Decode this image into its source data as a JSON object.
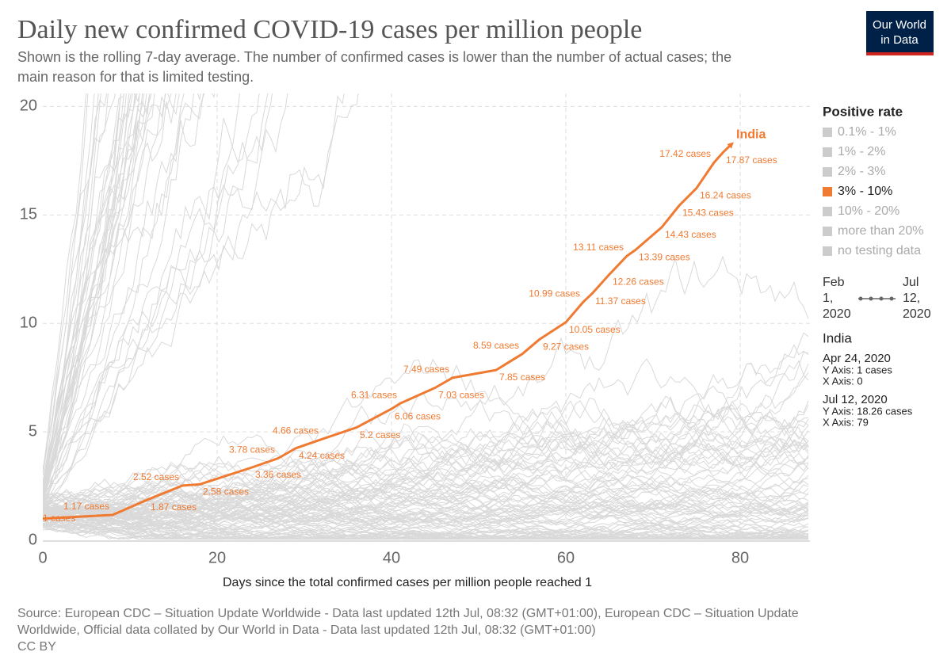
{
  "chart_data": {
    "type": "line",
    "title": "Daily new confirmed COVID-19 cases per million people",
    "subtitle": [
      "Shown is the rolling 7-day average. The number of confirmed cases is lower than the number of actual cases; the",
      "main reason for that is limited testing."
    ],
    "xlabel": "Days since the total confirmed cases per million people reached 1",
    "xlim": [
      0,
      88
    ],
    "ylim": [
      0,
      20.6
    ],
    "xticks": [
      0,
      20,
      40,
      60,
      80
    ],
    "yticks": [
      0,
      5,
      10,
      15,
      20
    ],
    "grid": true,
    "series": [
      {
        "name": "India",
        "color": "#ef7a31",
        "x": [
          0,
          8,
          12,
          16,
          18,
          24,
          27,
          29,
          32,
          36,
          40,
          41,
          45,
          47,
          52,
          55,
          57,
          60,
          62,
          63,
          65,
          67,
          68,
          71,
          73,
          75,
          77,
          78,
          79
        ],
        "values": [
          1,
          1.17,
          1.87,
          2.52,
          2.58,
          3.36,
          3.78,
          4.24,
          4.66,
          5.2,
          6.06,
          6.31,
          7.03,
          7.49,
          7.85,
          8.59,
          9.27,
          10.05,
          10.99,
          11.37,
          12.26,
          13.11,
          13.39,
          14.43,
          15.43,
          16.24,
          17.42,
          17.87,
          18.26
        ],
        "value_labels": [
          "1 cases",
          "1.17 cases",
          "1.87 cases",
          "2.52 cases",
          "2.58 cases",
          "3.36 cases",
          "3.78 cases",
          "4.24 cases",
          "4.66 cases",
          "5.2 cases",
          "6.06 cases",
          "6.31 cases",
          "7.03 cases",
          "7.49 cases",
          "7.85 cases",
          "8.59 cases",
          "9.27 cases",
          "10.05 cases",
          "10.99 cases",
          "11.37 cases",
          "12.26 cases",
          "13.11 cases",
          "13.39 cases",
          "14.43 cases",
          "15.43 cases",
          "16.24 cases",
          "17.42 cases",
          "17.87 cases",
          null
        ]
      }
    ],
    "legend": {
      "title": "Positive rate",
      "items": [
        {
          "label": "0.1% - 1%",
          "color": "#cccccc",
          "active": false
        },
        {
          "label": "1% - 2%",
          "color": "#cccccc",
          "active": false
        },
        {
          "label": "2% - 3%",
          "color": "#cccccc",
          "active": false
        },
        {
          "label": "3% - 10%",
          "color": "#ef7a31",
          "active": true
        },
        {
          "label": "10% - 20%",
          "color": "#cccccc",
          "active": false
        },
        {
          "label": "more than 20%",
          "color": "#cccccc",
          "active": false
        },
        {
          "label": "no testing data",
          "color": "#cccccc",
          "active": false
        }
      ]
    },
    "timeline": {
      "start": [
        "Feb",
        "1,",
        "2020"
      ],
      "end": [
        "Jul",
        "12,",
        "2020"
      ]
    },
    "tooltip": {
      "country": "India",
      "entries": [
        {
          "date": "Apr 24, 2020",
          "y": "Y Axis: 1 cases",
          "x": "X Axis: 0"
        },
        {
          "date": "Jul 12, 2020",
          "y": "Y Axis: 18.26 cases",
          "x": "X Axis: 79"
        }
      ]
    },
    "logo": [
      "Our World",
      "in Data"
    ],
    "source": [
      "Source: European CDC – Situation Update Worldwide - Data last updated 12th Jul, 08:32 (GMT+01:00), European CDC – Situation Update",
      "Worldwide, Official data collated by Our World in Data - Data last updated 12th Jul, 08:32 (GMT+01:00)"
    ],
    "license": "CC BY"
  }
}
